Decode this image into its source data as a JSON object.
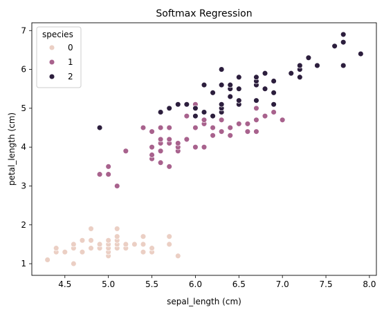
{
  "chart_data": {
    "type": "scatter",
    "title": "Softmax Regression",
    "xlabel": "sepal_length (cm)",
    "ylabel": "petal_length (cm)",
    "xlim": [
      4.12,
      8.08
    ],
    "ylim": [
      0.7,
      7.2
    ],
    "xticks": [
      4.5,
      5.0,
      5.5,
      6.0,
      6.5,
      7.0,
      7.5,
      8.0
    ],
    "xtick_labels": [
      "4.5",
      "5.0",
      "5.5",
      "6.0",
      "6.5",
      "7.0",
      "7.5",
      "8.0"
    ],
    "yticks": [
      1,
      2,
      3,
      4,
      5,
      6,
      7
    ],
    "ytick_labels": [
      "1",
      "2",
      "3",
      "4",
      "5",
      "6",
      "7"
    ],
    "grid": false,
    "legend": {
      "title": "species",
      "placement": "top-left"
    },
    "series": [
      {
        "name": "0",
        "color": "#ebcfc4",
        "points": [
          [
            4.3,
            1.1
          ],
          [
            4.4,
            1.3
          ],
          [
            4.4,
            1.4
          ],
          [
            4.5,
            1.3
          ],
          [
            4.6,
            1.0
          ],
          [
            4.6,
            1.4
          ],
          [
            4.6,
            1.5
          ],
          [
            4.7,
            1.3
          ],
          [
            4.7,
            1.6
          ],
          [
            4.8,
            1.4
          ],
          [
            4.8,
            1.6
          ],
          [
            4.8,
            1.9
          ],
          [
            4.9,
            1.4
          ],
          [
            4.9,
            1.5
          ],
          [
            5.0,
            1.2
          ],
          [
            5.0,
            1.3
          ],
          [
            5.0,
            1.4
          ],
          [
            5.0,
            1.5
          ],
          [
            5.0,
            1.6
          ],
          [
            5.1,
            1.4
          ],
          [
            5.1,
            1.5
          ],
          [
            5.1,
            1.6
          ],
          [
            5.1,
            1.7
          ],
          [
            5.1,
            1.9
          ],
          [
            5.2,
            1.4
          ],
          [
            5.2,
            1.5
          ],
          [
            5.3,
            1.5
          ],
          [
            5.4,
            1.3
          ],
          [
            5.4,
            1.5
          ],
          [
            5.4,
            1.7
          ],
          [
            5.5,
            1.3
          ],
          [
            5.5,
            1.4
          ],
          [
            5.7,
            1.5
          ],
          [
            5.7,
            1.7
          ],
          [
            5.8,
            1.2
          ]
        ]
      },
      {
        "name": "1",
        "color": "#a8628d",
        "points": [
          [
            4.9,
            3.3
          ],
          [
            5.0,
            3.3
          ],
          [
            5.0,
            3.5
          ],
          [
            5.1,
            3.0
          ],
          [
            5.2,
            3.9
          ],
          [
            5.4,
            4.5
          ],
          [
            5.5,
            3.7
          ],
          [
            5.5,
            3.8
          ],
          [
            5.5,
            4.0
          ],
          [
            5.5,
            4.4
          ],
          [
            5.6,
            3.6
          ],
          [
            5.6,
            3.9
          ],
          [
            5.6,
            4.1
          ],
          [
            5.6,
            4.2
          ],
          [
            5.6,
            4.5
          ],
          [
            5.7,
            3.5
          ],
          [
            5.7,
            4.1
          ],
          [
            5.7,
            4.2
          ],
          [
            5.7,
            4.5
          ],
          [
            5.8,
            3.9
          ],
          [
            5.8,
            4.0
          ],
          [
            5.8,
            4.1
          ],
          [
            5.9,
            4.2
          ],
          [
            5.9,
            4.8
          ],
          [
            6.0,
            4.0
          ],
          [
            6.0,
            4.5
          ],
          [
            6.0,
            5.1
          ],
          [
            6.1,
            4.0
          ],
          [
            6.1,
            4.6
          ],
          [
            6.1,
            4.7
          ],
          [
            6.2,
            4.3
          ],
          [
            6.2,
            4.5
          ],
          [
            6.3,
            4.4
          ],
          [
            6.3,
            4.7
          ],
          [
            6.3,
            4.9
          ],
          [
            6.4,
            4.3
          ],
          [
            6.4,
            4.5
          ],
          [
            6.5,
            4.6
          ],
          [
            6.6,
            4.4
          ],
          [
            6.6,
            4.6
          ],
          [
            6.7,
            4.4
          ],
          [
            6.7,
            4.7
          ],
          [
            6.7,
            5.0
          ],
          [
            6.8,
            4.8
          ],
          [
            6.9,
            4.9
          ],
          [
            7.0,
            4.7
          ]
        ]
      },
      {
        "name": "2",
        "color": "#2c1e3d",
        "points": [
          [
            4.9,
            4.5
          ],
          [
            5.6,
            4.9
          ],
          [
            5.7,
            5.0
          ],
          [
            5.8,
            5.1
          ],
          [
            5.9,
            5.1
          ],
          [
            6.0,
            4.8
          ],
          [
            6.0,
            5.0
          ],
          [
            6.1,
            4.9
          ],
          [
            6.1,
            5.6
          ],
          [
            6.2,
            4.8
          ],
          [
            6.2,
            5.4
          ],
          [
            6.3,
            4.9
          ],
          [
            6.3,
            5.0
          ],
          [
            6.3,
            5.1
          ],
          [
            6.3,
            5.6
          ],
          [
            6.3,
            6.0
          ],
          [
            6.4,
            5.3
          ],
          [
            6.4,
            5.5
          ],
          [
            6.4,
            5.6
          ],
          [
            6.5,
            5.1
          ],
          [
            6.5,
            5.2
          ],
          [
            6.5,
            5.5
          ],
          [
            6.5,
            5.8
          ],
          [
            6.7,
            5.2
          ],
          [
            6.7,
            5.6
          ],
          [
            6.7,
            5.7
          ],
          [
            6.7,
            5.8
          ],
          [
            6.8,
            5.5
          ],
          [
            6.8,
            5.9
          ],
          [
            6.9,
            5.1
          ],
          [
            6.9,
            5.4
          ],
          [
            6.9,
            5.7
          ],
          [
            7.1,
            5.9
          ],
          [
            7.2,
            5.8
          ],
          [
            7.2,
            6.0
          ],
          [
            7.2,
            6.1
          ],
          [
            7.3,
            6.3
          ],
          [
            7.4,
            6.1
          ],
          [
            7.6,
            6.6
          ],
          [
            7.7,
            6.1
          ],
          [
            7.7,
            6.7
          ],
          [
            7.7,
            6.9
          ],
          [
            7.9,
            6.4
          ]
        ]
      }
    ]
  }
}
